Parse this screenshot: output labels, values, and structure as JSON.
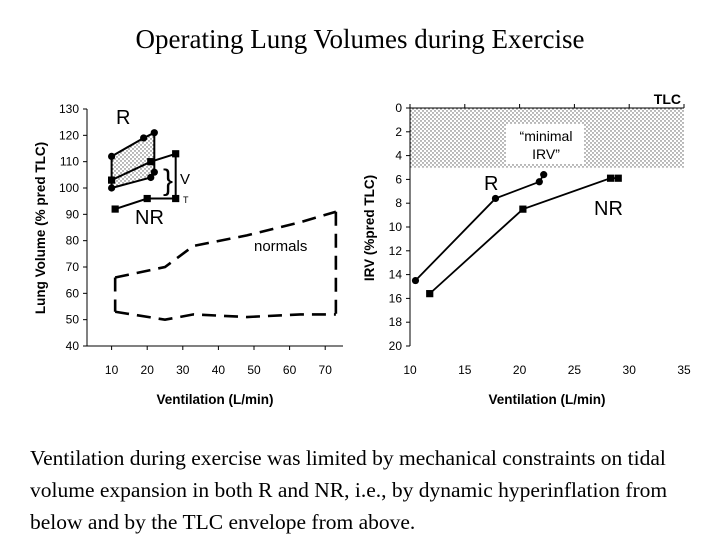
{
  "slide": {
    "title": "Operating Lung Volumes during Exercise",
    "caption": "Ventilation during exercise was limited by mechanical constraints on tidal volume expansion in both R and NR, i.e., by dynamic hyperinflation from below and by the TLC envelope from above."
  },
  "chart_data": [
    {
      "type": "line",
      "title": "",
      "xlabel": "Ventilation (L/min)",
      "ylabel": "Lung Volume (% pred TLC)",
      "xlim": [
        0,
        75
      ],
      "ylim": [
        40,
        130
      ],
      "xticks": [
        10,
        20,
        30,
        40,
        50,
        60,
        70
      ],
      "yticks": [
        40,
        50,
        60,
        70,
        80,
        90,
        100,
        110,
        120,
        130
      ],
      "grid": false,
      "series": [
        {
          "name": "R",
          "role": "EILV",
          "x": [
            10,
            19,
            22
          ],
          "y": [
            112,
            119,
            121
          ],
          "marker": "circle",
          "color": "#000000"
        },
        {
          "name": "R",
          "role": "EELV",
          "x": [
            10,
            21,
            22
          ],
          "y": [
            100,
            104,
            106
          ],
          "marker": "circle",
          "color": "#000000"
        },
        {
          "name": "NR",
          "role": "EILV",
          "x": [
            10,
            21,
            28
          ],
          "y": [
            103,
            110,
            113
          ],
          "marker": "square",
          "color": "#000000"
        },
        {
          "name": "NR",
          "role": "EELV",
          "x": [
            11,
            20,
            28
          ],
          "y": [
            92,
            96,
            96
          ],
          "marker": "square",
          "color": "#000000"
        },
        {
          "name": "normals",
          "role": "EILV",
          "x": [
            11,
            25,
            33,
            48,
            63,
            73
          ],
          "y": [
            66,
            70,
            78,
            82,
            87,
            91
          ],
          "marker": "none",
          "dash": true,
          "color": "#000000"
        },
        {
          "name": "normals",
          "role": "EELV",
          "x": [
            11,
            25,
            33,
            48,
            63,
            73
          ],
          "y": [
            53,
            50,
            52,
            51,
            52,
            52
          ],
          "marker": "none",
          "dash": true,
          "color": "#000000"
        }
      ],
      "annotations": {
        "R": "R",
        "NR": "NR",
        "vt_main": "V",
        "vt_sub": "T",
        "normals": "normals"
      }
    },
    {
      "type": "line",
      "title": "",
      "xlabel": "Ventilation (L/min)",
      "ylabel": "IRV (%pred TLC)",
      "xlim": [
        10,
        35
      ],
      "ylim": [
        0,
        20
      ],
      "y_inverted": true,
      "xticks": [
        10,
        15,
        20,
        25,
        30,
        35
      ],
      "yticks": [
        0,
        2,
        4,
        6,
        8,
        10,
        12,
        14,
        16,
        18,
        20
      ],
      "grid": false,
      "shaded_band": {
        "from": 0,
        "to": 5,
        "label_line1": "“minimal",
        "label_line2": "IRV”"
      },
      "series": [
        {
          "name": "R",
          "x": [
            10.5,
            17.8,
            21.8,
            22.2
          ],
          "y": [
            14.5,
            7.6,
            6.2,
            5.6
          ],
          "marker": "circle",
          "color": "#000000"
        },
        {
          "name": "NR",
          "x": [
            11.8,
            20.3,
            28.3,
            29.0
          ],
          "y": [
            15.6,
            8.5,
            5.9,
            5.9
          ],
          "marker": "square",
          "color": "#000000"
        }
      ],
      "annotations": {
        "TLC": "TLC",
        "R": "R",
        "NR": "NR"
      }
    }
  ]
}
